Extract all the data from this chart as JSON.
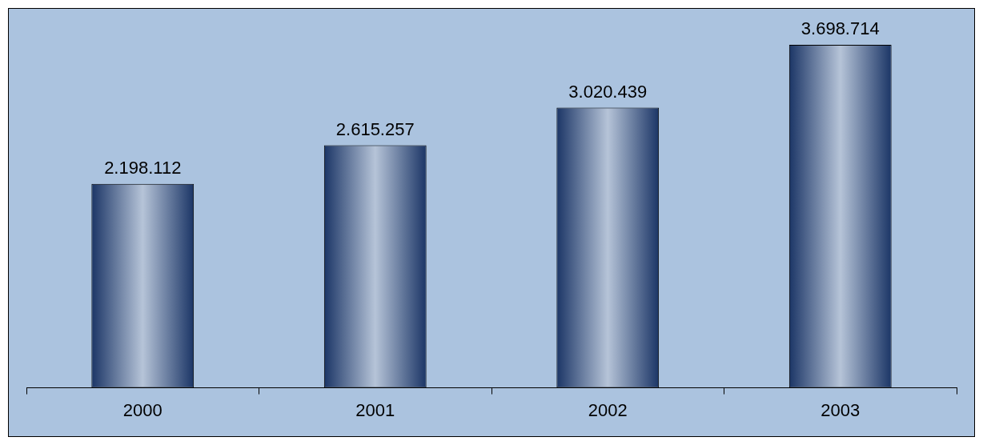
{
  "chart_data": {
    "type": "bar",
    "categories": [
      "2000",
      "2001",
      "2002",
      "2003"
    ],
    "values": [
      2198112,
      2615257,
      3020439,
      3698714
    ],
    "value_labels": [
      "2.198.112",
      "2.615.257",
      "3.020.439",
      "3.698.714"
    ],
    "color": "#1b3566"
  }
}
